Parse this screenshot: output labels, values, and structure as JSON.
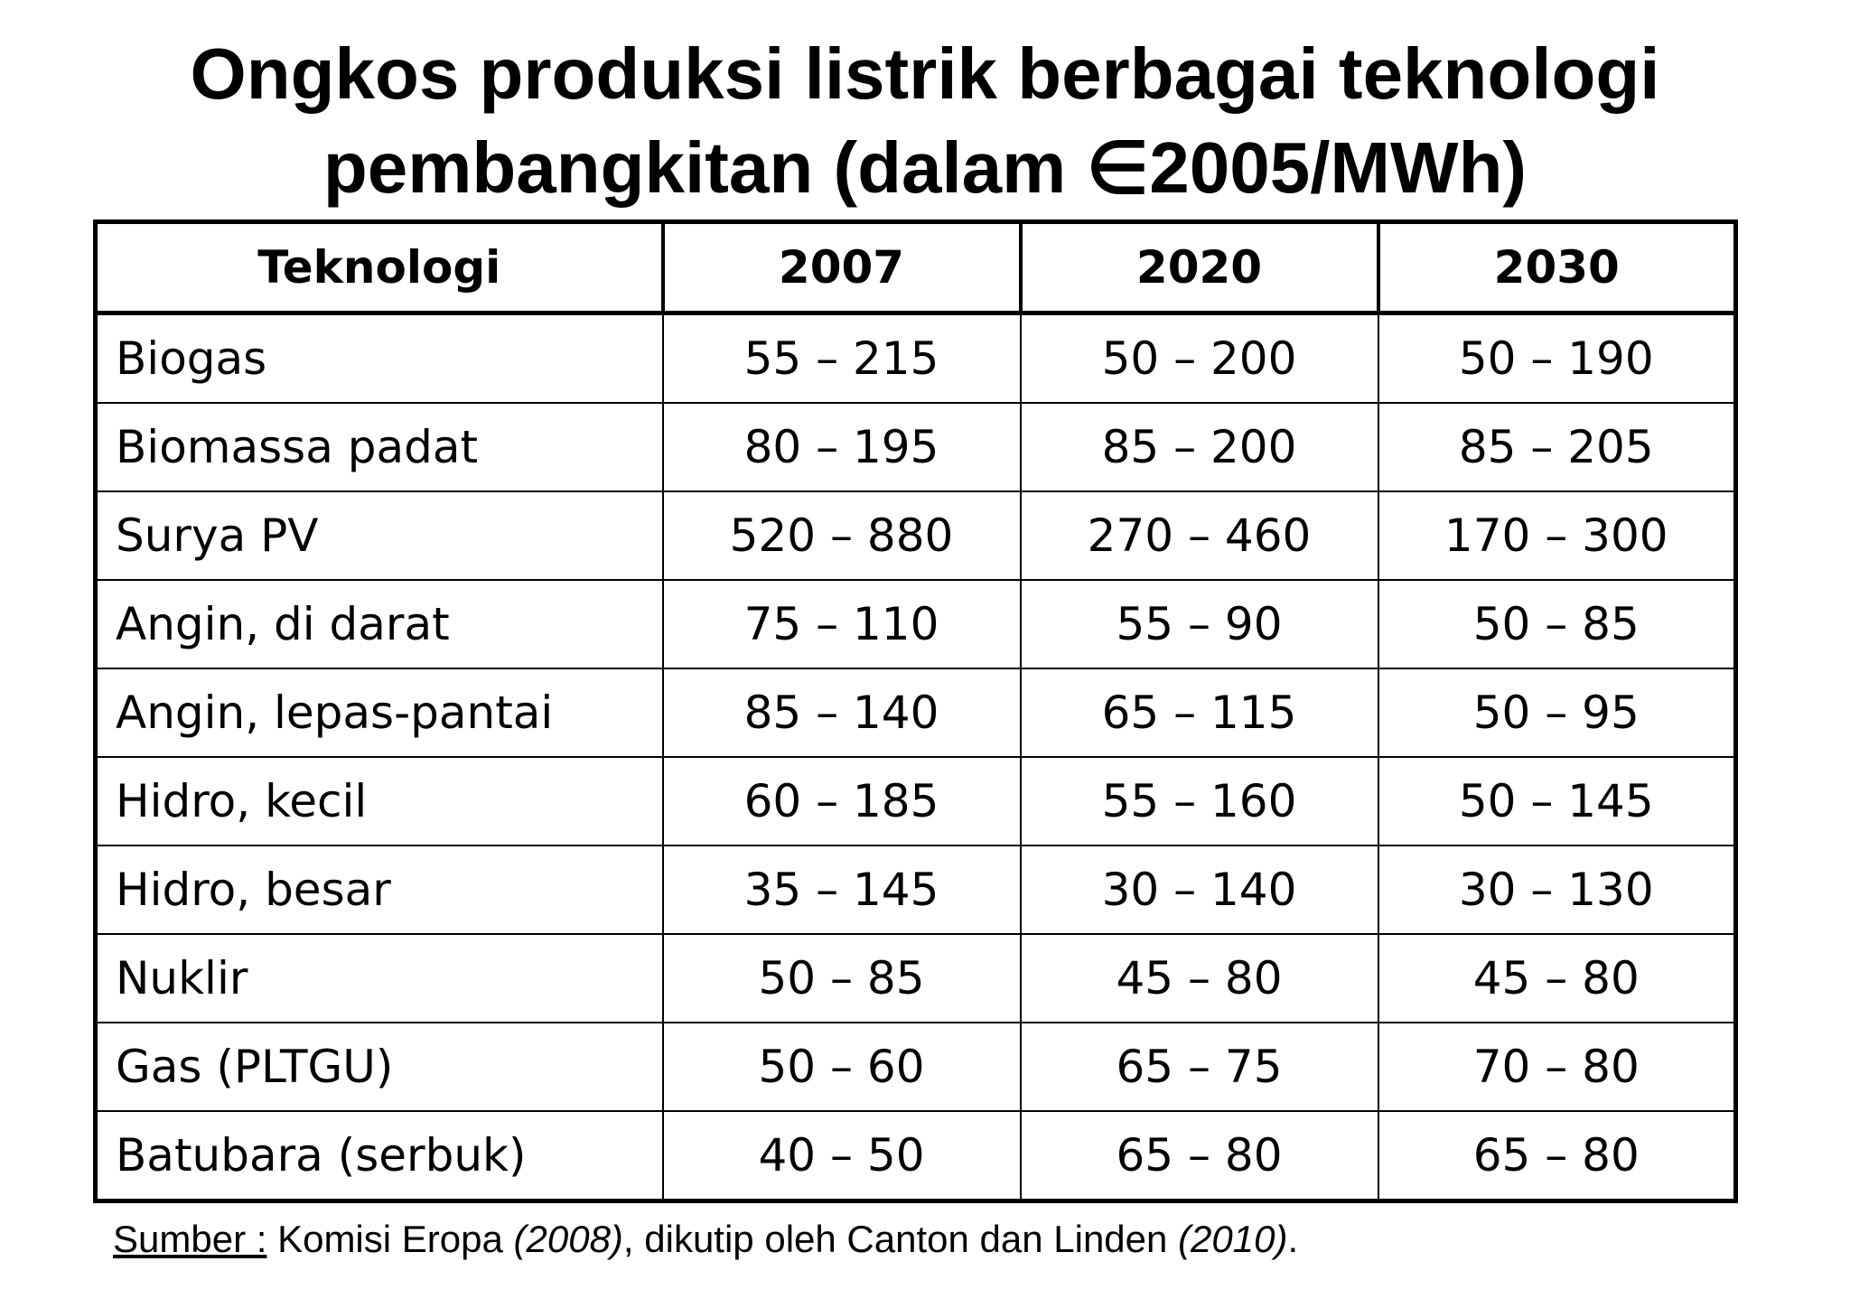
{
  "title": {
    "line1": "Ongkos produksi listrik berbagai teknologi",
    "line2": "pembangkitan (dalam ∈2005/MWh)"
  },
  "table": {
    "headers": [
      "Teknologi",
      "2007",
      "2020",
      "2030"
    ],
    "rows": [
      [
        "Biogas",
        "55 – 215",
        "50 – 200",
        "50 – 190"
      ],
      [
        "Biomassa padat",
        "80 – 195",
        "85 – 200",
        "85 – 205"
      ],
      [
        "Surya PV",
        "520 – 880",
        "270 – 460",
        "170 – 300"
      ],
      [
        "Angin, di darat",
        "75 – 110",
        "55 – 90",
        "50 – 85"
      ],
      [
        "Angin, lepas-pantai",
        "85 – 140",
        "65 – 115",
        "50 – 95"
      ],
      [
        "Hidro, kecil",
        "60 – 185",
        "55 – 160",
        "50 – 145"
      ],
      [
        "Hidro, besar",
        "35 – 145",
        "30 – 140",
        "30 – 130"
      ],
      [
        "Nuklir",
        "50 – 85",
        "45 – 80",
        "45 – 80"
      ],
      [
        "Gas (PLTGU)",
        "50 – 60",
        "65 – 75",
        "70 – 80"
      ],
      [
        "Batubara (serbuk)",
        "40 – 50",
        "65 – 80",
        "65 – 80"
      ]
    ]
  },
  "source": {
    "label": "Sumber :",
    "text1": " Komisi Eropa ",
    "year1": "(2008)",
    "text2": ", dikutip oleh Canton dan Linden ",
    "year2": "(2010)",
    "end": "."
  }
}
